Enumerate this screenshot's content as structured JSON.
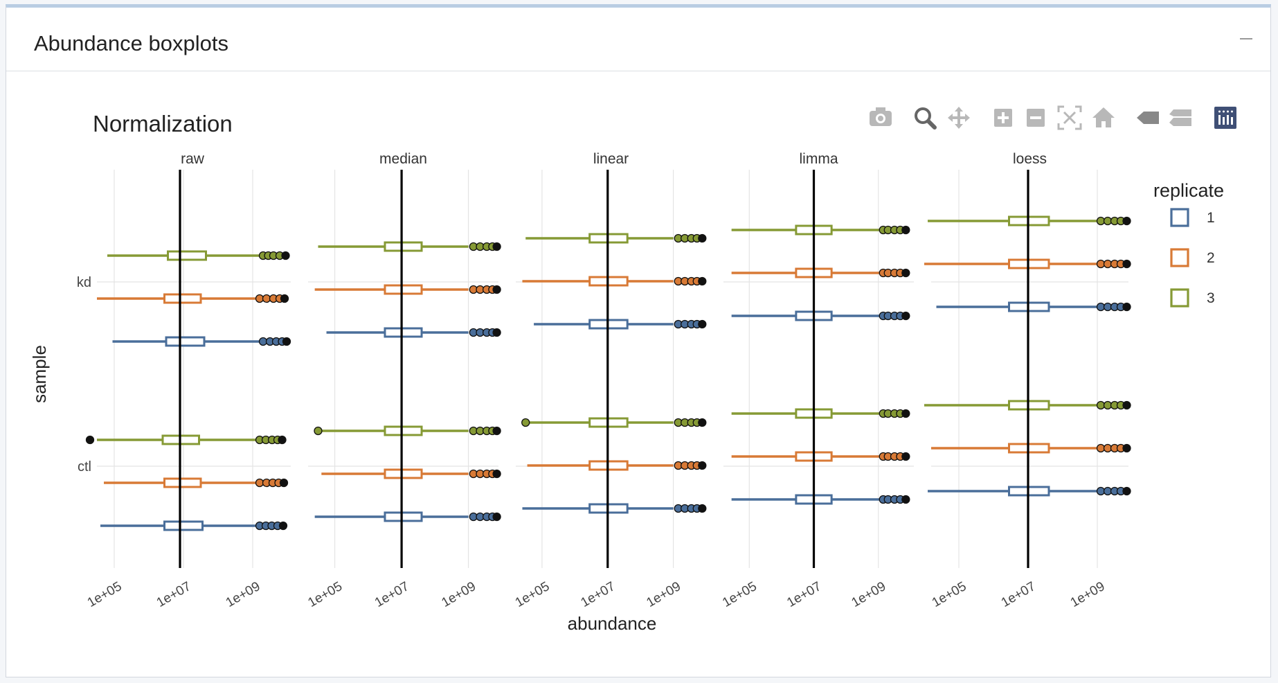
{
  "card": {
    "title": "Abundance boxplots"
  },
  "modebar": [
    {
      "name": "camera-icon",
      "label": "Download plot as a png"
    },
    {
      "name": "zoom-icon",
      "label": "Zoom"
    },
    {
      "name": "pan-icon",
      "label": "Pan"
    },
    {
      "name": "zoom-in-icon",
      "label": "Zoom in"
    },
    {
      "name": "zoom-out-icon",
      "label": "Zoom out"
    },
    {
      "name": "autoscale-icon",
      "label": "Autoscale"
    },
    {
      "name": "home-icon",
      "label": "Reset axes"
    },
    {
      "name": "hover-closest-icon",
      "label": "Show closest data on hover"
    },
    {
      "name": "hover-compare-icon",
      "label": "Compare data on hover"
    },
    {
      "name": "plotly-logo-icon",
      "label": "Produced with Plotly"
    }
  ],
  "colors": {
    "1": "#4a6e9a",
    "2": "#d87a36",
    "3": "#869a35",
    "vline": "#000000",
    "grid": "#e4e4e4",
    "outlier_fill": "#111111"
  },
  "chart_data": {
    "type": "boxplot",
    "title": "Normalization",
    "xlabel": "abundance",
    "ylabel": "sample",
    "x_scale": "log10",
    "x_ticks": [
      "1e+05",
      "1e+07",
      "1e+09"
    ],
    "y_categories": [
      "kd",
      "ctl"
    ],
    "legend": {
      "title": "replicate",
      "position": "right",
      "entries": [
        "1",
        "2",
        "3"
      ]
    },
    "grid": true,
    "panels": [
      {
        "name": "raw",
        "xlim": [
          4.5,
          10.1
        ],
        "median_line": 6.9,
        "boxes": [
          {
            "sample": "kd",
            "replicate": "3",
            "whisker_low": 4.8,
            "q1": 6.55,
            "median": 6.9,
            "q3": 7.65,
            "whisker_high": 9.2,
            "outliers": [
              9.3,
              9.45,
              9.6,
              9.78,
              9.95
            ]
          },
          {
            "sample": "kd",
            "replicate": "2",
            "whisker_low": 4.5,
            "q1": 6.45,
            "median": 6.9,
            "q3": 7.5,
            "whisker_high": 9.1,
            "outliers": [
              9.2,
              9.4,
              9.6,
              9.78,
              9.92
            ]
          },
          {
            "sample": "kd",
            "replicate": "1",
            "whisker_low": 4.95,
            "q1": 6.5,
            "median": 6.9,
            "q3": 7.6,
            "whisker_high": 9.2,
            "outliers": [
              9.3,
              9.5,
              9.68,
              9.85,
              9.98
            ]
          },
          {
            "sample": "ctl",
            "replicate": "3",
            "whisker_low": 4.5,
            "q1": 6.4,
            "median": 6.9,
            "q3": 7.45,
            "whisker_high": 9.1,
            "outliers": [
              4.3,
              9.2,
              9.38,
              9.56,
              9.72,
              9.85
            ]
          },
          {
            "sample": "ctl",
            "replicate": "2",
            "whisker_low": 4.7,
            "q1": 6.45,
            "median": 6.9,
            "q3": 7.5,
            "whisker_high": 9.1,
            "outliers": [
              9.2,
              9.4,
              9.58,
              9.75,
              9.9
            ]
          },
          {
            "sample": "ctl",
            "replicate": "1",
            "whisker_low": 4.6,
            "q1": 6.45,
            "median": 6.9,
            "q3": 7.55,
            "whisker_high": 9.1,
            "outliers": [
              9.2,
              9.38,
              9.55,
              9.72,
              9.88
            ]
          }
        ]
      },
      {
        "name": "median",
        "xlim": [
          4.2,
          9.9
        ],
        "median_line": 7.0,
        "boxes": [
          {
            "sample": "kd",
            "replicate": "3",
            "whisker_low": 4.5,
            "q1": 6.5,
            "median": 7.0,
            "q3": 7.6,
            "whisker_high": 9.0,
            "outliers": [
              9.15,
              9.35,
              9.55,
              9.72,
              9.85
            ]
          },
          {
            "sample": "kd",
            "replicate": "2",
            "whisker_low": 4.4,
            "q1": 6.5,
            "median": 7.0,
            "q3": 7.6,
            "whisker_high": 9.0,
            "outliers": [
              9.15,
              9.35,
              9.55,
              9.72,
              9.85
            ]
          },
          {
            "sample": "kd",
            "replicate": "1",
            "whisker_low": 4.75,
            "q1": 6.5,
            "median": 7.0,
            "q3": 7.6,
            "whisker_high": 9.0,
            "outliers": [
              9.15,
              9.35,
              9.55,
              9.72,
              9.85
            ]
          },
          {
            "sample": "ctl",
            "replicate": "3",
            "whisker_low": 4.5,
            "q1": 6.5,
            "median": 7.0,
            "q3": 7.6,
            "whisker_high": 9.0,
            "outliers": [
              4.5,
              9.15,
              9.35,
              9.55,
              9.72,
              9.85
            ]
          },
          {
            "sample": "ctl",
            "replicate": "2",
            "whisker_low": 4.6,
            "q1": 6.5,
            "median": 7.0,
            "q3": 7.6,
            "whisker_high": 9.0,
            "outliers": [
              9.15,
              9.35,
              9.55,
              9.72,
              9.85
            ]
          },
          {
            "sample": "ctl",
            "replicate": "1",
            "whisker_low": 4.4,
            "q1": 6.5,
            "median": 7.0,
            "q3": 7.6,
            "whisker_high": 9.0,
            "outliers": [
              9.15,
              9.35,
              9.55,
              9.72,
              9.85
            ]
          }
        ]
      },
      {
        "name": "linear",
        "xlim": [
          4.2,
          10.0
        ],
        "median_line": 7.0,
        "boxes": [
          {
            "sample": "kd",
            "replicate": "3",
            "whisker_low": 4.5,
            "q1": 6.45,
            "median": 7.0,
            "q3": 7.6,
            "whisker_high": 9.0,
            "outliers": [
              9.15,
              9.35,
              9.55,
              9.72,
              9.88
            ]
          },
          {
            "sample": "kd",
            "replicate": "2",
            "whisker_low": 4.4,
            "q1": 6.45,
            "median": 7.0,
            "q3": 7.6,
            "whisker_high": 9.0,
            "outliers": [
              9.15,
              9.35,
              9.55,
              9.72,
              9.88
            ]
          },
          {
            "sample": "kd",
            "replicate": "1",
            "whisker_low": 4.75,
            "q1": 6.45,
            "median": 7.0,
            "q3": 7.6,
            "whisker_high": 9.0,
            "outliers": [
              9.15,
              9.35,
              9.55,
              9.72,
              9.88
            ]
          },
          {
            "sample": "ctl",
            "replicate": "3",
            "whisker_low": 4.5,
            "q1": 6.45,
            "median": 7.0,
            "q3": 7.6,
            "whisker_high": 9.0,
            "outliers": [
              4.5,
              9.15,
              9.35,
              9.55,
              9.72,
              9.88
            ]
          },
          {
            "sample": "ctl",
            "replicate": "2",
            "whisker_low": 4.55,
            "q1": 6.45,
            "median": 7.0,
            "q3": 7.6,
            "whisker_high": 9.0,
            "outliers": [
              9.15,
              9.35,
              9.55,
              9.72,
              9.88
            ]
          },
          {
            "sample": "ctl",
            "replicate": "1",
            "whisker_low": 4.4,
            "q1": 6.45,
            "median": 7.0,
            "q3": 7.6,
            "whisker_high": 9.0,
            "outliers": [
              9.15,
              9.35,
              9.55,
              9.72,
              9.88
            ]
          }
        ]
      },
      {
        "name": "limma",
        "xlim": [
          4.2,
          10.1
        ],
        "median_line": 7.0,
        "boxes": [
          {
            "sample": "kd",
            "replicate": "3",
            "whisker_low": 4.45,
            "q1": 6.45,
            "median": 7.0,
            "q3": 7.55,
            "whisker_high": 9.05,
            "outliers": [
              9.15,
              9.3,
              9.5,
              9.68,
              9.85
            ]
          },
          {
            "sample": "kd",
            "replicate": "2",
            "whisker_low": 4.45,
            "q1": 6.45,
            "median": 7.0,
            "q3": 7.55,
            "whisker_high": 9.05,
            "outliers": [
              9.15,
              9.3,
              9.5,
              9.68,
              9.85
            ]
          },
          {
            "sample": "kd",
            "replicate": "1",
            "whisker_low": 4.45,
            "q1": 6.45,
            "median": 7.0,
            "q3": 7.55,
            "whisker_high": 9.05,
            "outliers": [
              9.15,
              9.3,
              9.5,
              9.68,
              9.85
            ]
          },
          {
            "sample": "ctl",
            "replicate": "3",
            "whisker_low": 4.45,
            "q1": 6.45,
            "median": 7.0,
            "q3": 7.55,
            "whisker_high": 9.05,
            "outliers": [
              9.15,
              9.3,
              9.5,
              9.68,
              9.85
            ]
          },
          {
            "sample": "ctl",
            "replicate": "2",
            "whisker_low": 4.45,
            "q1": 6.45,
            "median": 7.0,
            "q3": 7.55,
            "whisker_high": 9.05,
            "outliers": [
              9.15,
              9.3,
              9.5,
              9.68,
              9.85
            ]
          },
          {
            "sample": "ctl",
            "replicate": "1",
            "whisker_low": 4.45,
            "q1": 6.45,
            "median": 7.0,
            "q3": 7.55,
            "whisker_high": 9.05,
            "outliers": [
              9.15,
              9.3,
              9.5,
              9.68,
              9.85
            ]
          }
        ]
      },
      {
        "name": "loess",
        "xlim": [
          4.2,
          9.9
        ],
        "median_line": 7.0,
        "boxes": [
          {
            "sample": "kd",
            "replicate": "3",
            "whisker_low": 4.1,
            "q1": 6.45,
            "median": 7.0,
            "q3": 7.6,
            "whisker_high": 9.0,
            "outliers": [
              9.1,
              9.3,
              9.5,
              9.68,
              9.85
            ]
          },
          {
            "sample": "kd",
            "replicate": "2",
            "whisker_low": 4.0,
            "q1": 6.45,
            "median": 7.0,
            "q3": 7.6,
            "whisker_high": 9.0,
            "outliers": [
              9.1,
              9.3,
              9.5,
              9.68,
              9.85
            ]
          },
          {
            "sample": "kd",
            "replicate": "1",
            "whisker_low": 4.35,
            "q1": 6.45,
            "median": 7.0,
            "q3": 7.6,
            "whisker_high": 9.0,
            "outliers": [
              9.1,
              9.3,
              9.5,
              9.68,
              9.85
            ]
          },
          {
            "sample": "ctl",
            "replicate": "3",
            "whisker_low": 4.0,
            "q1": 6.45,
            "median": 7.0,
            "q3": 7.6,
            "whisker_high": 9.0,
            "outliers": [
              9.1,
              9.3,
              9.5,
              9.68,
              9.85
            ]
          },
          {
            "sample": "ctl",
            "replicate": "2",
            "whisker_low": 4.2,
            "q1": 6.45,
            "median": 7.0,
            "q3": 7.6,
            "whisker_high": 9.0,
            "outliers": [
              9.1,
              9.3,
              9.5,
              9.68,
              9.85
            ]
          },
          {
            "sample": "ctl",
            "replicate": "1",
            "whisker_low": 4.1,
            "q1": 6.45,
            "median": 7.0,
            "q3": 7.6,
            "whisker_high": 9.0,
            "outliers": [
              9.1,
              9.3,
              9.5,
              9.68,
              9.85
            ]
          }
        ]
      }
    ]
  }
}
